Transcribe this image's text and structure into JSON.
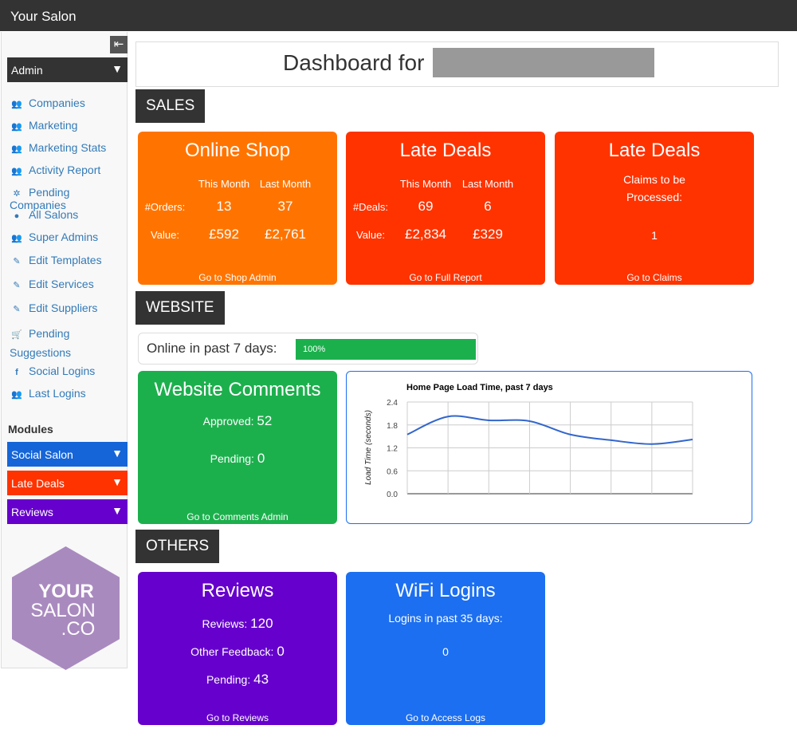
{
  "app": {
    "title": "Your Salon"
  },
  "sidebar": {
    "admin_select": "Admin",
    "items": [
      {
        "label": "Companies",
        "icon": "users-icon"
      },
      {
        "label": "Marketing",
        "icon": "users-icon"
      },
      {
        "label": "Marketing Stats",
        "icon": "users-icon"
      },
      {
        "label": "Activity Report",
        "icon": "users-icon"
      },
      {
        "label": "Pending Companies",
        "icon": "badge-icon"
      },
      {
        "label": "All Salons",
        "icon": "map-marker-icon"
      },
      {
        "label": "Super Admins",
        "icon": "users-icon"
      },
      {
        "label": "Edit Templates",
        "icon": "pencil-icon"
      },
      {
        "label": "Edit Services",
        "icon": "pencil-icon"
      },
      {
        "label": "Edit Suppliers",
        "icon": "pencil-icon"
      },
      {
        "label": "Pending",
        "label2": "Suggestions",
        "icon": "cart-icon"
      },
      {
        "label": "Social Logins",
        "icon": "facebook-icon"
      },
      {
        "label": "Last Logins",
        "icon": "users-icon"
      }
    ],
    "modules_title": "Modules",
    "modules": [
      {
        "label": "Social Salon",
        "color": "#1565d8"
      },
      {
        "label": "Late Deals",
        "color": "#ff3300"
      },
      {
        "label": "Reviews",
        "color": "#6600cc"
      }
    ],
    "logo": {
      "line1": "YOUR",
      "line2": "SALON",
      "line3": ".CO"
    }
  },
  "header": {
    "title": "Dashboard for"
  },
  "sections": {
    "sales": "SALES",
    "website": "WEBSITE",
    "others": "OTHERS"
  },
  "online_shop": {
    "title": "Online Shop",
    "col1": "This Month",
    "col2": "Last Month",
    "orders_label": "#Orders:",
    "orders_this": "13",
    "orders_last": "37",
    "value_label": "Value:",
    "value_this": "£592",
    "value_last": "£2,761",
    "link": "Go to Shop Admin"
  },
  "late_deals": {
    "title": "Late Deals",
    "col1": "This Month",
    "col2": "Last Month",
    "deals_label": "#Deals:",
    "deals_this": "69",
    "deals_last": "6",
    "value_label": "Value:",
    "value_this": "£2,834",
    "value_last": "£329",
    "link": "Go to Full Report"
  },
  "late_deals_claims": {
    "title": "Late Deals",
    "line1": "Claims to be",
    "line2": "Processed:",
    "count": "1",
    "link": "Go to Claims"
  },
  "online": {
    "label": "Online in past 7 days:",
    "progress_text": "100%",
    "progress": 1.0
  },
  "comments": {
    "title": "Website Comments",
    "approved_label": "Approved:",
    "approved": "52",
    "pending_label": "Pending:",
    "pending": "0",
    "link": "Go to Comments Admin"
  },
  "reviews": {
    "title": "Reviews",
    "reviews_label": "Reviews:",
    "reviews": "120",
    "feedback_label": "Other Feedback:",
    "feedback": "0",
    "pending_label": "Pending:",
    "pending": "43",
    "link": "Go to Reviews"
  },
  "wifi": {
    "title": "WiFi Logins",
    "label": "Logins in past 35 days:",
    "count": "0",
    "link": "Go to Access Logs"
  },
  "colors": {
    "orange": "#ff7400",
    "red": "#ff3300",
    "green": "#1cb04d",
    "purple": "#6600cc",
    "blue": "#1c6ff0",
    "dark": "#333333"
  },
  "chart_data": {
    "type": "line",
    "title": "Home Page Load Time, past 7 days",
    "ylabel": "Load Time (seconds)",
    "xlabel": "",
    "ylim": [
      0,
      2.4
    ],
    "yticks": [
      "2.4",
      "1.8",
      "1.2",
      "0.6",
      "0.0"
    ],
    "x": [
      0,
      1,
      2,
      3,
      4,
      5,
      6,
      7
    ],
    "values": [
      1.55,
      2.02,
      1.92,
      1.9,
      1.55,
      1.4,
      1.3,
      1.42
    ],
    "grid": true,
    "color": "#3366cc"
  }
}
